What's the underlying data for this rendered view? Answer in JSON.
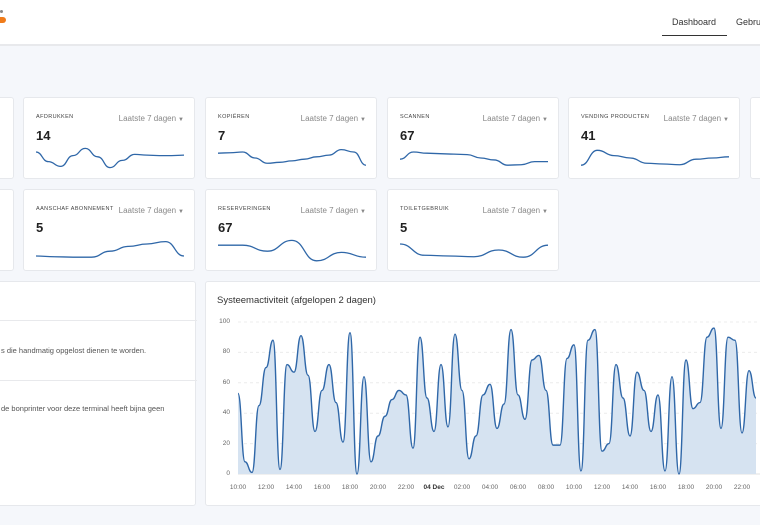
{
  "header": {
    "nav": [
      {
        "label": "Dashboard",
        "active": true
      },
      {
        "label": "Gebru"
      }
    ],
    "brand_color": "#f07c1b"
  },
  "cards_row1": [
    {
      "title": "Afdrukken",
      "period": "Laatste 7 dagen",
      "value": "14",
      "trend": [
        0.75,
        0.35,
        0.15,
        0.6,
        0.9,
        0.55,
        0.1,
        0.4,
        0.65,
        0.62,
        0.6,
        0.6,
        0.62
      ]
    },
    {
      "title": "Kopiëren",
      "period": "Laatste 7 dagen",
      "value": "7",
      "trend": [
        0.7,
        0.72,
        0.75,
        0.5,
        0.28,
        0.32,
        0.38,
        0.45,
        0.55,
        0.62,
        0.85,
        0.75,
        0.2
      ]
    },
    {
      "title": "Scannen",
      "period": "Laatste 7 dagen",
      "value": "67",
      "trend": [
        0.45,
        0.75,
        0.7,
        0.68,
        0.66,
        0.64,
        0.5,
        0.42,
        0.2,
        0.22,
        0.35,
        0.35
      ]
    },
    {
      "title": "Vending producten",
      "period": "Laatste 7 dagen",
      "value": "41",
      "trend": [
        0.2,
        0.82,
        0.6,
        0.5,
        0.28,
        0.25,
        0.22,
        0.45,
        0.5,
        0.55
      ]
    }
  ],
  "cards_row2": [
    {
      "title": "Aanschaf abonnement",
      "period": "Laatste 7 dagen",
      "value": "5",
      "trend": [
        0.25,
        0.22,
        0.2,
        0.2,
        0.45,
        0.65,
        0.75,
        0.85,
        0.25
      ]
    },
    {
      "title": "Reserveringen",
      "period": "Laatste 7 dagen",
      "value": "67",
      "trend": [
        0.7,
        0.7,
        0.45,
        0.9,
        0.05,
        0.4,
        0.2
      ]
    },
    {
      "title": "Toiletgebruik",
      "period": "Laatste 7 dagen",
      "value": "5",
      "trend": [
        0.75,
        0.28,
        0.25,
        0.22,
        0.5,
        0.2,
        0.7
      ]
    }
  ],
  "messages": [
    {
      "text": "s die handmatig opgelost dienen te worden."
    },
    {
      "text": "de bonprinter voor deze terminal heeft bijna geen"
    }
  ],
  "chart_data": {
    "type": "area",
    "title": "Systeemactiviteit (afgelopen 2 dagen)",
    "xlabel": "",
    "ylabel": "",
    "ylim": [
      0,
      100
    ],
    "yticks": [
      "100",
      "80",
      "60",
      "40",
      "20",
      "0"
    ],
    "xticks": [
      {
        "label": "10:00",
        "h": 0
      },
      {
        "label": "12:00",
        "h": 2
      },
      {
        "label": "14:00",
        "h": 4
      },
      {
        "label": "16:00",
        "h": 6
      },
      {
        "label": "18:00",
        "h": 8
      },
      {
        "label": "20:00",
        "h": 10
      },
      {
        "label": "22:00",
        "h": 12
      },
      {
        "label": "04 Dec",
        "h": 14,
        "bold": true
      },
      {
        "label": "02:00",
        "h": 16
      },
      {
        "label": "04:00",
        "h": 18
      },
      {
        "label": "06:00",
        "h": 20
      },
      {
        "label": "08:00",
        "h": 22
      },
      {
        "label": "10:00",
        "h": 24
      },
      {
        "label": "12:00",
        "h": 26
      },
      {
        "label": "14:00",
        "h": 28
      },
      {
        "label": "16:00",
        "h": 30
      },
      {
        "label": "18:00",
        "h": 32
      },
      {
        "label": "20:00",
        "h": 34
      },
      {
        "label": "22:00",
        "h": 36
      }
    ],
    "x_hours_step": 0.5,
    "values": [
      53,
      8,
      1,
      45,
      70,
      88,
      3,
      72,
      67,
      91,
      65,
      28,
      55,
      72,
      47,
      21,
      93,
      0,
      64,
      8,
      25,
      38,
      49,
      55,
      52,
      17,
      90,
      50,
      28,
      72,
      31,
      92,
      55,
      10,
      25,
      52,
      59,
      30,
      46,
      95,
      52,
      36,
      75,
      78,
      55,
      19,
      19,
      76,
      85,
      2,
      88,
      95,
      15,
      20,
      72,
      50,
      25,
      67,
      55,
      28,
      52,
      2,
      64,
      0,
      75,
      43,
      47,
      90,
      96,
      30,
      90,
      88,
      27,
      68,
      50
    ],
    "grid": true,
    "line_color": "#2f67a8",
    "fill_color": "#d6e3f1"
  }
}
